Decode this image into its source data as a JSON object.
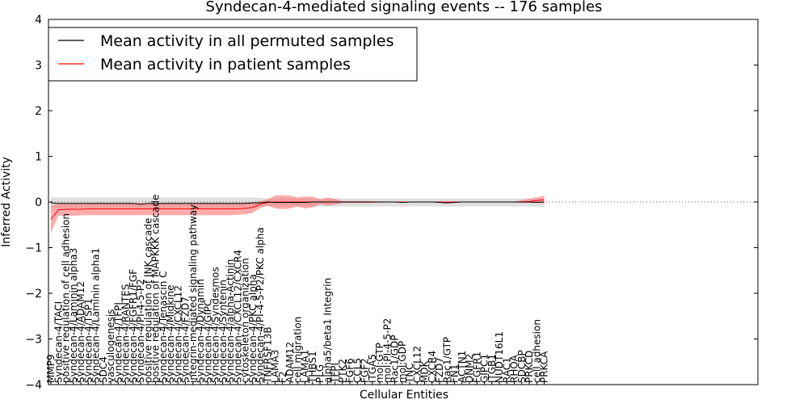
{
  "chart_data": {
    "type": "line",
    "title": "Syndecan-4-mediated signaling events -- 176 samples",
    "xlabel": "Cellular Entities",
    "ylabel": "Inferred Activity",
    "ylim": [
      -4,
      4
    ],
    "yticks": [
      "4",
      "3",
      "2",
      "1",
      "0",
      "−1",
      "−2",
      "−3",
      "−4"
    ],
    "legend_position": "top-left",
    "colors": {
      "permuted": "#000000",
      "patient": "#ff0000",
      "permuted_band": "#bbbbbb",
      "patient_band": "#ff6666"
    },
    "categories": [
      "MMP9",
      "Syndecan-4/TACI",
      "positive regulation of cell adhesion",
      "Syndecan-4/Laminin alpha3",
      "Syndecan-4/ADAM12",
      "Syndecan-4/TSP1",
      "Syndecan-4/Laminin alpha1",
      "SDC4",
      "vasculogenesis",
      "Syndecan-4/TFPI",
      "Syndecan-4/RANTES",
      "Syndecan-4/FGFR1/FGF",
      "Syndecan-4/PI-4-5-P2",
      "positive regulation of JNK cascade",
      "positive regulation of MAPKKK cascade",
      "Syndecan-4/Tenascin C",
      "Syndecan-4/Midkine",
      "Syndecan-4/CXCL12",
      "Syndecan-4/FZD7",
      "integrin-mediated signaling pathway",
      "Syndecan-4/Dynamin",
      "Syndecan-4/GIPC",
      "Syndecan-4/Syndesmos",
      "Syndecan-4/Syntenin",
      "Syndecan-4/alpha-Actinin",
      "Syndecan-4/CXCL12/CXCR4",
      "cytoskeleton organization",
      "Syndecan-4/PKC alpha",
      "Syndecan-4/PI-4-5-P2/PKC alpha",
      "TNFRSF13B",
      "LAMA3",
      "F2",
      "ADAM12",
      "cell migration",
      "LAMA1",
      "THBS1",
      "PLG",
      "alpha5/beta1 Integrin",
      "TFPI",
      "PTK2",
      "FGF6",
      "CCL5",
      "FGF2",
      "ITGA5",
      "mol:GTP",
      "mol:PI-4-5-P2",
      "Rac1/GDP",
      "mol:GDP",
      "TNC",
      "CXCL12",
      "MDK",
      "CXCR4",
      "FZD7",
      "Rac1/GTP",
      "FN1",
      "ACTN1",
      "DNM2",
      "FGFR1",
      "GIPC1",
      "ITGB1",
      "NUDT16L1",
      "RAC1",
      "RHOA",
      "SDCBP",
      "PRKCD",
      "cell adhesion",
      "PRKCA"
    ],
    "series": [
      {
        "name": "Mean activity in all permuted samples",
        "values": [
          -0.02,
          -0.03,
          -0.03,
          -0.03,
          -0.03,
          -0.03,
          -0.03,
          -0.03,
          -0.03,
          -0.03,
          -0.03,
          -0.03,
          -0.05,
          -0.03,
          -0.04,
          -0.03,
          -0.03,
          -0.03,
          -0.03,
          -0.03,
          -0.03,
          -0.03,
          -0.03,
          -0.03,
          -0.03,
          -0.03,
          -0.03,
          -0.02,
          -0.02,
          0.0,
          -0.01,
          -0.01,
          -0.01,
          -0.01,
          -0.01,
          0.0,
          0.0,
          0.0,
          0.0,
          0.0,
          0.0,
          0.0,
          0.0,
          0.0,
          0.0,
          0.0,
          0.0,
          -0.01,
          0.0,
          0.0,
          0.0,
          0.0,
          -0.01,
          -0.02,
          -0.01,
          0.0,
          0.0,
          0.0,
          0.0,
          0.0,
          0.0,
          0.0,
          0.0,
          0.0,
          0.0,
          -0.01,
          0.0
        ],
        "lower": [
          -0.12,
          -0.13,
          -0.13,
          -0.13,
          -0.13,
          -0.13,
          -0.13,
          -0.13,
          -0.13,
          -0.13,
          -0.13,
          -0.13,
          -0.14,
          -0.13,
          -0.13,
          -0.13,
          -0.13,
          -0.13,
          -0.13,
          -0.13,
          -0.13,
          -0.13,
          -0.13,
          -0.13,
          -0.13,
          -0.13,
          -0.13,
          -0.12,
          -0.1,
          -0.09,
          -0.1,
          -0.1,
          -0.1,
          -0.1,
          -0.1,
          -0.1,
          -0.1,
          -0.1,
          -0.1,
          -0.1,
          -0.1,
          -0.1,
          -0.1,
          -0.1,
          -0.1,
          -0.1,
          -0.1,
          -0.1,
          -0.1,
          -0.1,
          -0.1,
          -0.1,
          -0.1,
          -0.1,
          -0.1,
          -0.1,
          -0.1,
          -0.1,
          -0.1,
          -0.1,
          -0.1,
          -0.1,
          -0.1,
          -0.1,
          -0.1,
          -0.11,
          -0.11
        ],
        "upper": [
          0.1,
          0.1,
          0.1,
          0.1,
          0.1,
          0.1,
          0.1,
          0.1,
          0.1,
          0.1,
          0.1,
          0.1,
          0.1,
          0.1,
          0.1,
          0.1,
          0.1,
          0.1,
          0.1,
          0.1,
          0.1,
          0.1,
          0.1,
          0.1,
          0.1,
          0.1,
          0.1,
          0.1,
          0.09,
          0.08,
          0.08,
          0.08,
          0.08,
          0.08,
          0.08,
          0.08,
          0.08,
          0.08,
          0.08,
          0.08,
          0.08,
          0.08,
          0.08,
          0.08,
          0.08,
          0.08,
          0.08,
          0.08,
          0.08,
          0.08,
          0.08,
          0.08,
          0.08,
          0.08,
          0.08,
          0.08,
          0.08,
          0.08,
          0.08,
          0.08,
          0.08,
          0.08,
          0.08,
          0.08,
          0.08,
          0.08,
          0.08
        ]
      },
      {
        "name": "Mean activity in patient samples",
        "values": [
          -0.38,
          -0.17,
          -0.16,
          -0.16,
          -0.16,
          -0.15,
          -0.15,
          -0.15,
          -0.15,
          -0.15,
          -0.15,
          -0.15,
          -0.15,
          -0.15,
          -0.15,
          -0.15,
          -0.15,
          -0.15,
          -0.15,
          -0.15,
          -0.15,
          -0.15,
          -0.15,
          -0.15,
          -0.15,
          -0.15,
          -0.14,
          -0.12,
          -0.05,
          -0.01,
          0.0,
          0.0,
          0.0,
          0.0,
          0.0,
          0.0,
          0.0,
          0.0,
          0.0,
          0.0,
          0.0,
          0.0,
          0.0,
          0.0,
          0.0,
          0.0,
          0.0,
          0.0,
          0.0,
          0.0,
          0.0,
          0.0,
          0.0,
          0.0,
          0.0,
          0.0,
          0.0,
          0.0,
          0.0,
          0.0,
          0.0,
          0.0,
          0.0,
          0.0,
          0.01,
          0.03,
          0.05
        ],
        "lower": [
          -0.68,
          -0.3,
          -0.3,
          -0.3,
          -0.29,
          -0.29,
          -0.29,
          -0.29,
          -0.29,
          -0.29,
          -0.29,
          -0.29,
          -0.29,
          -0.29,
          -0.29,
          -0.29,
          -0.29,
          -0.29,
          -0.29,
          -0.29,
          -0.29,
          -0.29,
          -0.29,
          -0.29,
          -0.29,
          -0.28,
          -0.27,
          -0.24,
          -0.13,
          -0.08,
          -0.14,
          -0.16,
          -0.14,
          -0.1,
          -0.14,
          -0.12,
          -0.05,
          -0.08,
          -0.06,
          -0.02,
          -0.02,
          -0.02,
          -0.02,
          -0.02,
          -0.01,
          -0.01,
          -0.01,
          -0.01,
          -0.01,
          -0.01,
          -0.01,
          -0.01,
          -0.01,
          -0.01,
          -0.01,
          -0.01,
          -0.01,
          -0.01,
          -0.01,
          -0.01,
          -0.01,
          -0.01,
          -0.01,
          -0.02,
          -0.02,
          -0.02,
          -0.03
        ],
        "upper": [
          -0.08,
          -0.04,
          -0.03,
          -0.03,
          -0.03,
          -0.02,
          -0.02,
          -0.02,
          -0.02,
          -0.02,
          -0.02,
          -0.02,
          -0.02,
          -0.02,
          -0.02,
          -0.02,
          -0.02,
          -0.02,
          -0.02,
          -0.02,
          -0.02,
          -0.02,
          -0.02,
          -0.02,
          -0.02,
          -0.02,
          -0.01,
          -0.01,
          0.02,
          0.06,
          0.14,
          0.15,
          0.14,
          0.1,
          0.12,
          0.12,
          0.06,
          0.1,
          0.07,
          0.02,
          0.02,
          0.02,
          0.02,
          0.02,
          0.01,
          0.01,
          0.01,
          0.01,
          0.01,
          0.01,
          0.01,
          0.01,
          0.01,
          0.01,
          0.01,
          0.01,
          0.01,
          0.01,
          0.01,
          0.01,
          0.01,
          0.01,
          0.01,
          0.04,
          0.07,
          0.1,
          0.14
        ]
      }
    ]
  }
}
